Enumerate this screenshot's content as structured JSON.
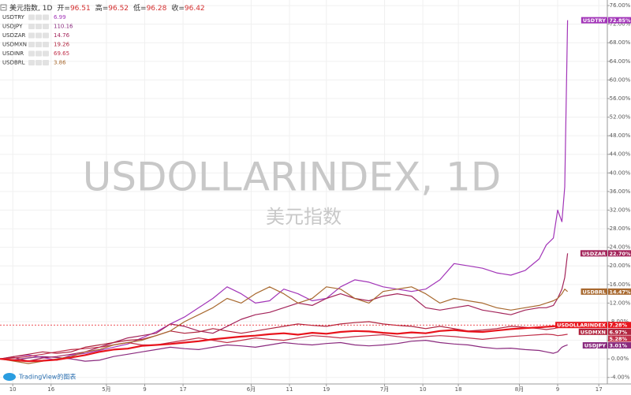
{
  "chart_data": {
    "type": "line",
    "header": {
      "symbol": "美元指数, 1D",
      "ohlc": [
        {
          "label": "开=",
          "value": 96.51
        },
        {
          "label": "高=",
          "value": 96.52
        },
        {
          "label": "低=",
          "value": 96.28
        },
        {
          "label": "收=",
          "value": 96.42
        }
      ]
    },
    "watermark": "USDOLLARINDEX, 1D",
    "watermark_sub": "美元指数",
    "branding": "TradingView的图表",
    "x": [
      0,
      1,
      2,
      3,
      4,
      5,
      6,
      7,
      8,
      9,
      10,
      11,
      12,
      13,
      14,
      15,
      16,
      17,
      18,
      19,
      20,
      21,
      22,
      23,
      24,
      25,
      26,
      27,
      28,
      29,
      30,
      31,
      32,
      33,
      34,
      35,
      36,
      37,
      38,
      38.5,
      39,
      39.3,
      39.6,
      39.8,
      40
    ],
    "xlim": [
      0,
      42.8
    ],
    "xticks": [
      {
        "value": 0.9,
        "label": "10"
      },
      {
        "value": 3.6,
        "label": "16"
      },
      {
        "value": 7.5,
        "label": "5月"
      },
      {
        "value": 10.2,
        "label": "9"
      },
      {
        "value": 12.9,
        "label": "17"
      },
      {
        "value": 17.7,
        "label": "6月"
      },
      {
        "value": 20.4,
        "label": "11"
      },
      {
        "value": 23,
        "label": "19"
      },
      {
        "value": 27.1,
        "label": "7月"
      },
      {
        "value": 29.8,
        "label": "10"
      },
      {
        "value": 32.3,
        "label": "18"
      },
      {
        "value": 36.6,
        "label": "8月"
      },
      {
        "value": 39.3,
        "label": "9"
      },
      {
        "value": 42.2,
        "label": "17"
      }
    ],
    "ylim": [
      -5.4,
      77.2
    ],
    "yticks": [
      {
        "value": -4,
        "label": "-4.00%"
      },
      {
        "value": 0,
        "label": "0.00%"
      },
      {
        "value": 4,
        "label": "4.00%"
      },
      {
        "value": 8,
        "label": "8.00%"
      },
      {
        "value": 12,
        "label": "12.00%"
      },
      {
        "value": 16,
        "label": "16.00%"
      },
      {
        "value": 20,
        "label": "20.00%"
      },
      {
        "value": 24,
        "label": "24.00%"
      },
      {
        "value": 28,
        "label": "28.00%"
      },
      {
        "value": 32,
        "label": "32.00%"
      },
      {
        "value": 36,
        "label": "36.00%"
      },
      {
        "value": 40,
        "label": "40.00%"
      },
      {
        "value": 44,
        "label": "44.00%"
      },
      {
        "value": 48,
        "label": "48.00%"
      },
      {
        "value": 52,
        "label": "52.00%"
      },
      {
        "value": 56,
        "label": "56.00%"
      },
      {
        "value": 60,
        "label": "60.00%"
      },
      {
        "value": 64,
        "label": "64.00%"
      },
      {
        "value": 68,
        "label": "68.00%"
      },
      {
        "value": 72,
        "label": "72.00%"
      },
      {
        "value": 76,
        "label": "76.00%"
      }
    ],
    "grid": true,
    "series": [
      {
        "name": "USDTRY",
        "color": "#a235b8",
        "price": 6.99,
        "show_name": true,
        "values": [
          0,
          0.5,
          0.8,
          0.3,
          -0.3,
          0.8,
          1.2,
          1.8,
          2.5,
          3.2,
          4.5,
          5.8,
          7.5,
          9,
          11,
          13,
          15.5,
          14,
          12,
          12.5,
          15,
          14,
          12.5,
          13,
          15.5,
          17,
          16.5,
          15.5,
          15,
          14.5,
          15,
          17,
          20.5,
          20,
          19.5,
          18.5,
          18,
          19,
          21.5,
          24.5,
          26,
          32,
          29.5,
          37,
          72.85
        ],
        "value_labels": [
          null,
          null,
          null,
          null,
          null,
          null,
          null,
          null,
          null,
          null,
          null,
          null,
          null,
          null,
          null,
          null,
          null,
          null,
          null,
          null,
          null,
          null,
          null,
          null,
          null,
          null,
          null,
          null,
          null,
          null,
          null,
          null,
          null,
          null,
          null,
          null,
          null,
          null,
          null,
          null,
          null,
          null,
          null,
          null,
          "72.85%"
        ]
      },
      {
        "name": "USDJPY",
        "color": "#8a2a7e",
        "price": 110.16,
        "show_name": true,
        "values": [
          0,
          -0.2,
          0.2,
          0.5,
          0.3,
          0,
          -0.5,
          -0.3,
          0.5,
          1,
          1.5,
          2,
          2.5,
          2.2,
          2,
          2.5,
          3,
          2.8,
          2.5,
          3,
          3.5,
          3.2,
          3,
          3.3,
          3.5,
          3,
          2.8,
          3,
          3.3,
          3.8,
          4,
          3.5,
          3.2,
          3,
          2.5,
          2.2,
          2.3,
          2,
          1.8,
          1.5,
          1.2,
          1.5,
          2.5,
          2.8,
          3.01
        ],
        "value_labels": [
          null,
          null,
          null,
          null,
          null,
          null,
          null,
          null,
          null,
          null,
          null,
          null,
          null,
          null,
          null,
          null,
          null,
          null,
          null,
          null,
          null,
          null,
          null,
          null,
          null,
          null,
          null,
          null,
          null,
          null,
          null,
          null,
          null,
          null,
          null,
          null,
          null,
          null,
          null,
          null,
          null,
          null,
          null,
          null,
          "3.01%"
        ]
      },
      {
        "name": "USDZAR",
        "color": "#a3245a",
        "price": 14.76,
        "show_name": true,
        "values": [
          0,
          0.3,
          -0.5,
          0.2,
          0.5,
          1,
          1.5,
          2.5,
          3.5,
          4.5,
          5,
          5.5,
          7.5,
          7,
          6,
          5.5,
          7,
          8.5,
          9.5,
          10,
          11,
          12,
          11.5,
          13,
          14,
          13,
          12.5,
          13.5,
          14,
          13.5,
          11,
          10.5,
          11,
          11.5,
          10.5,
          10,
          9.5,
          10.5,
          11,
          11,
          11.5,
          13,
          15,
          17.5,
          22.7
        ],
        "value_labels": [
          null,
          null,
          null,
          null,
          null,
          null,
          null,
          null,
          null,
          null,
          null,
          null,
          null,
          null,
          null,
          null,
          null,
          null,
          null,
          null,
          null,
          null,
          null,
          null,
          null,
          null,
          null,
          null,
          null,
          null,
          null,
          null,
          null,
          null,
          null,
          null,
          null,
          null,
          null,
          null,
          null,
          null,
          null,
          null,
          "22.70%"
        ]
      },
      {
        "name": "USDMXN",
        "color": "#b0243e",
        "price": 19.26,
        "show_name": true,
        "values": [
          0,
          0.5,
          1,
          1.5,
          1.2,
          1.5,
          2.5,
          3,
          3.5,
          4,
          4.2,
          5,
          6,
          5.5,
          5.8,
          6.5,
          6,
          5.5,
          6,
          6.5,
          7,
          7.5,
          7.2,
          7,
          7.5,
          7.8,
          8,
          7.5,
          7.2,
          7,
          6.5,
          7,
          6.5,
          6,
          6.2,
          6.5,
          7,
          6.8,
          6.5,
          6.3,
          6.5,
          6.7,
          6.9,
          6.9,
          6.97
        ],
        "value_labels": [
          null,
          null,
          null,
          null,
          null,
          null,
          null,
          null,
          null,
          null,
          null,
          null,
          null,
          null,
          null,
          null,
          null,
          null,
          null,
          null,
          null,
          null,
          null,
          null,
          null,
          null,
          null,
          null,
          null,
          null,
          null,
          null,
          null,
          null,
          null,
          null,
          null,
          null,
          null,
          null,
          null,
          null,
          null,
          null,
          "6.97%"
        ]
      },
      {
        "name": "USDINR",
        "color": "#c0304a",
        "price": 69.65,
        "show_name": false,
        "values": [
          0,
          0.2,
          0.5,
          1,
          1.5,
          2,
          2.2,
          2.5,
          3,
          3.5,
          3,
          3,
          3.5,
          4,
          4.5,
          4,
          3.5,
          4,
          4.5,
          4.2,
          4,
          4.5,
          5,
          4.8,
          4.5,
          4.8,
          5,
          5.2,
          4.8,
          4.5,
          4.8,
          5,
          4.8,
          4.5,
          4.2,
          4.5,
          4.8,
          5,
          5.2,
          5.3,
          5.2,
          5,
          5.1,
          5.2,
          5.28
        ],
        "value_labels": [
          null,
          null,
          null,
          null,
          null,
          null,
          null,
          null,
          null,
          null,
          null,
          null,
          null,
          null,
          null,
          null,
          null,
          null,
          null,
          null,
          null,
          null,
          null,
          null,
          null,
          null,
          null,
          null,
          null,
          null,
          null,
          null,
          null,
          null,
          null,
          null,
          null,
          null,
          null,
          null,
          null,
          null,
          null,
          null,
          "5.28%"
        ]
      },
      {
        "name": "USDBRL",
        "color": "#a8692f",
        "price": 3.86,
        "show_name": true,
        "values": [
          0,
          -0.5,
          -1,
          -0.5,
          0,
          0.5,
          1.5,
          2,
          3,
          3.5,
          4,
          5,
          6,
          8,
          9.5,
          11,
          13,
          12,
          14,
          15.5,
          14,
          12,
          13,
          15.5,
          15,
          13,
          12,
          14.5,
          15,
          15.5,
          14,
          12,
          13,
          12.5,
          12,
          11,
          10.5,
          11,
          11.5,
          12,
          12.5,
          13,
          14,
          15,
          14.47
        ],
        "value_labels": [
          null,
          null,
          null,
          null,
          null,
          null,
          null,
          null,
          null,
          null,
          null,
          null,
          null,
          null,
          null,
          null,
          null,
          null,
          null,
          null,
          null,
          null,
          null,
          null,
          null,
          null,
          null,
          null,
          null,
          null,
          null,
          null,
          null,
          null,
          null,
          null,
          null,
          null,
          null,
          null,
          null,
          null,
          null,
          null,
          "14.47%"
        ]
      },
      {
        "name": "USDOLLARINDEX",
        "color": "#e8141c",
        "main": true,
        "show_name": true,
        "values": [
          0,
          -0.3,
          -0.5,
          -0.4,
          -0.2,
          0.3,
          0.8,
          1.5,
          2,
          2.2,
          2.8,
          3,
          3.2,
          3.5,
          3.8,
          4.2,
          4.5,
          4.8,
          5,
          5.3,
          5.5,
          5.2,
          5.6,
          5.4,
          5.8,
          6,
          5.9,
          5.6,
          5.4,
          5.7,
          5.5,
          6,
          6.2,
          5.9,
          5.8,
          6.1,
          6.4,
          6.6,
          6.8,
          6.9,
          7,
          7.1,
          7.2,
          7.25,
          7.28
        ],
        "value_labels": [
          null,
          null,
          null,
          null,
          null,
          null,
          null,
          null,
          null,
          null,
          null,
          null,
          null,
          null,
          null,
          null,
          null,
          null,
          null,
          null,
          null,
          null,
          null,
          null,
          null,
          null,
          null,
          null,
          null,
          null,
          null,
          null,
          null,
          null,
          null,
          null,
          null,
          null,
          null,
          null,
          null,
          null,
          null,
          null,
          "7.28%"
        ]
      }
    ]
  }
}
